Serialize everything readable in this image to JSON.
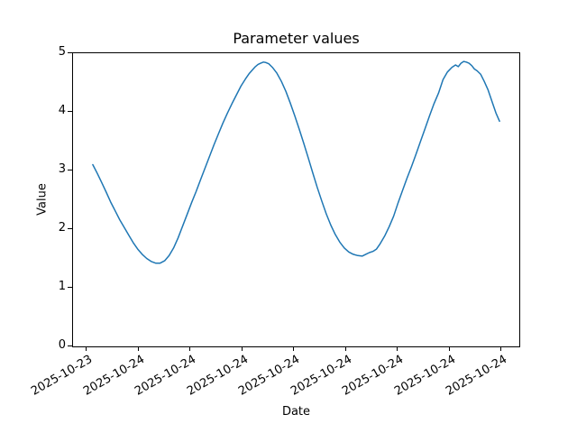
{
  "chart_data": {
    "type": "line",
    "title": "Parameter values",
    "xlabel": "Date",
    "ylabel": "Value",
    "ylim": [
      0,
      5
    ],
    "y_tick_labels": [
      "0",
      "1",
      "2",
      "3",
      "4",
      "5"
    ],
    "x_tick_labels": [
      "2025-10-23",
      "2025-10-24",
      "2025-10-24",
      "2025-10-24",
      "2025-10-24",
      "2025-10-24",
      "2025-10-24",
      "2025-10-24",
      "2025-10-24"
    ],
    "grid": false,
    "legend": "none",
    "line_color": "#1f77b4",
    "series": [
      {
        "name": "parameter-values",
        "points": [
          [
            0.0443,
            3.1
          ],
          [
            0.0543,
            2.95
          ],
          [
            0.0644,
            2.79
          ],
          [
            0.0744,
            2.63
          ],
          [
            0.0845,
            2.46
          ],
          [
            0.0946,
            2.31
          ],
          [
            0.1046,
            2.16
          ],
          [
            0.1147,
            2.03
          ],
          [
            0.1247,
            1.9
          ],
          [
            0.1348,
            1.77
          ],
          [
            0.1449,
            1.66
          ],
          [
            0.1549,
            1.57
          ],
          [
            0.165,
            1.5
          ],
          [
            0.175,
            1.45
          ],
          [
            0.1851,
            1.42
          ],
          [
            0.1952,
            1.42
          ],
          [
            0.2052,
            1.46
          ],
          [
            0.2153,
            1.55
          ],
          [
            0.2254,
            1.68
          ],
          [
            0.2354,
            1.85
          ],
          [
            0.2455,
            2.05
          ],
          [
            0.2555,
            2.25
          ],
          [
            0.2656,
            2.45
          ],
          [
            0.2757,
            2.64
          ],
          [
            0.2857,
            2.84
          ],
          [
            0.2958,
            3.04
          ],
          [
            0.3058,
            3.24
          ],
          [
            0.3159,
            3.44
          ],
          [
            0.326,
            3.63
          ],
          [
            0.336,
            3.81
          ],
          [
            0.3461,
            3.98
          ],
          [
            0.3561,
            4.14
          ],
          [
            0.3662,
            4.29
          ],
          [
            0.3763,
            4.44
          ],
          [
            0.3863,
            4.56
          ],
          [
            0.3944,
            4.65
          ],
          [
            0.4024,
            4.72
          ],
          [
            0.4085,
            4.77
          ],
          [
            0.4145,
            4.81
          ],
          [
            0.4205,
            4.83
          ],
          [
            0.4266,
            4.85
          ],
          [
            0.4326,
            4.84
          ],
          [
            0.4386,
            4.82
          ],
          [
            0.4467,
            4.76
          ],
          [
            0.4567,
            4.66
          ],
          [
            0.4668,
            4.52
          ],
          [
            0.4769,
            4.35
          ],
          [
            0.4869,
            4.15
          ],
          [
            0.497,
            3.93
          ],
          [
            0.507,
            3.7
          ],
          [
            0.5171,
            3.46
          ],
          [
            0.5272,
            3.21
          ],
          [
            0.5372,
            2.96
          ],
          [
            0.5473,
            2.71
          ],
          [
            0.5573,
            2.48
          ],
          [
            0.5674,
            2.26
          ],
          [
            0.5775,
            2.07
          ],
          [
            0.5875,
            1.91
          ],
          [
            0.5976,
            1.78
          ],
          [
            0.6076,
            1.68
          ],
          [
            0.6177,
            1.61
          ],
          [
            0.6278,
            1.57
          ],
          [
            0.6378,
            1.55
          ],
          [
            0.6479,
            1.54
          ],
          [
            0.6559,
            1.57
          ],
          [
            0.664,
            1.6
          ],
          [
            0.672,
            1.62
          ],
          [
            0.6801,
            1.66
          ],
          [
            0.6881,
            1.75
          ],
          [
            0.6982,
            1.88
          ],
          [
            0.7082,
            2.04
          ],
          [
            0.7183,
            2.22
          ],
          [
            0.7284,
            2.45
          ],
          [
            0.7384,
            2.66
          ],
          [
            0.7485,
            2.87
          ],
          [
            0.7585,
            3.07
          ],
          [
            0.7686,
            3.28
          ],
          [
            0.7787,
            3.5
          ],
          [
            0.7887,
            3.71
          ],
          [
            0.7988,
            3.93
          ],
          [
            0.8088,
            4.14
          ],
          [
            0.8189,
            4.32
          ],
          [
            0.829,
            4.55
          ],
          [
            0.839,
            4.68
          ],
          [
            0.8491,
            4.76
          ],
          [
            0.8571,
            4.8
          ],
          [
            0.8632,
            4.77
          ],
          [
            0.8692,
            4.83
          ],
          [
            0.8753,
            4.86
          ],
          [
            0.8813,
            4.85
          ],
          [
            0.8873,
            4.83
          ],
          [
            0.8934,
            4.79
          ],
          [
            0.8994,
            4.73
          ],
          [
            0.9054,
            4.7
          ],
          [
            0.9135,
            4.64
          ],
          [
            0.9215,
            4.52
          ],
          [
            0.9296,
            4.38
          ],
          [
            0.9396,
            4.16
          ],
          [
            0.9477,
            3.98
          ],
          [
            0.9557,
            3.84
          ]
        ]
      }
    ]
  },
  "layout_colors": {
    "background": "#ffffff",
    "spine": "#000000",
    "text": "#000000"
  }
}
